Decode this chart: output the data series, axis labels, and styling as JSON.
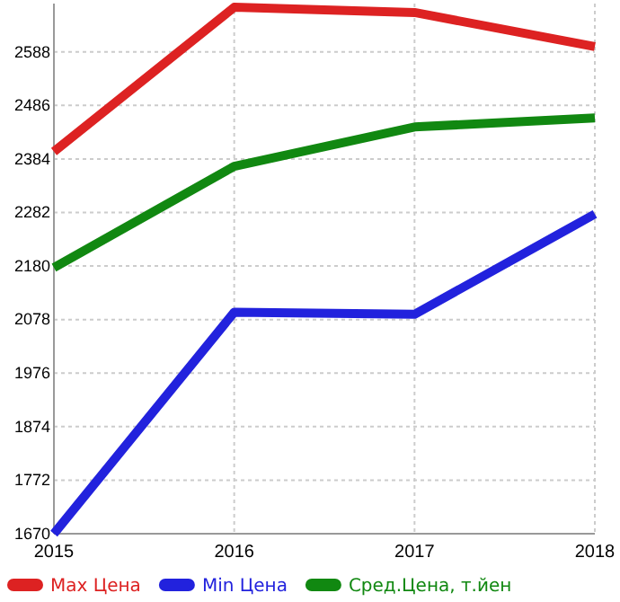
{
  "chart_data": {
    "type": "line",
    "x": [
      2015,
      2016,
      2017,
      2018
    ],
    "xlim": [
      2015,
      2018
    ],
    "xticks": [
      2015,
      2016,
      2017,
      2018
    ],
    "ylim": [
      1670,
      2680
    ],
    "yticks": [
      1670,
      1772,
      1874,
      1976,
      2078,
      2180,
      2282,
      2384,
      2486,
      2588
    ],
    "grid": true,
    "legend": "bottom",
    "marker": "none",
    "line_style": "solid",
    "series": [
      {
        "name": "Max Цена",
        "color": "#dd2222",
        "values": [
          2398,
          2673,
          2663,
          2598
        ]
      },
      {
        "name": "Min Цена",
        "color": "#2222dd",
        "values": [
          1670,
          2092,
          2088,
          2279
        ]
      },
      {
        "name": "Сред.Цена, т.йен",
        "color": "#118811",
        "values": [
          2177,
          2370,
          2445,
          2462
        ]
      }
    ]
  }
}
